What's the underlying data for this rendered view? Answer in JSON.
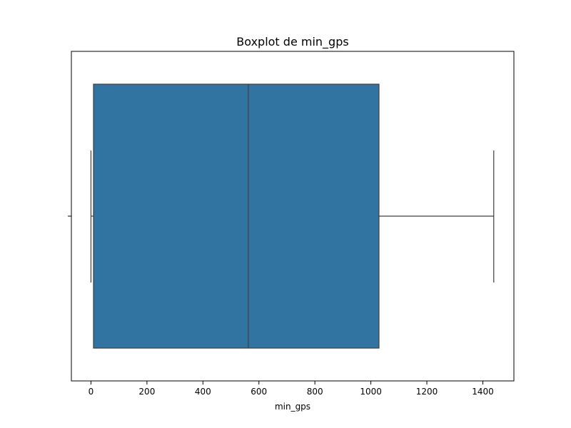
{
  "chart_data": {
    "type": "box",
    "title": "Boxplot de min_gps",
    "xlabel": "min_gps",
    "ylabel": "",
    "orientation": "horizontal",
    "xlim": [
      -70,
      1511
    ],
    "xticks": [
      0,
      200,
      400,
      600,
      800,
      1000,
      1200,
      1400
    ],
    "grid": false,
    "box_color": "#3274a1",
    "line_color": "#3f3f3f",
    "box": {
      "whisker_low": 0,
      "q1": 9,
      "median": 562,
      "q3": 1029,
      "whisker_high": 1439
    }
  }
}
